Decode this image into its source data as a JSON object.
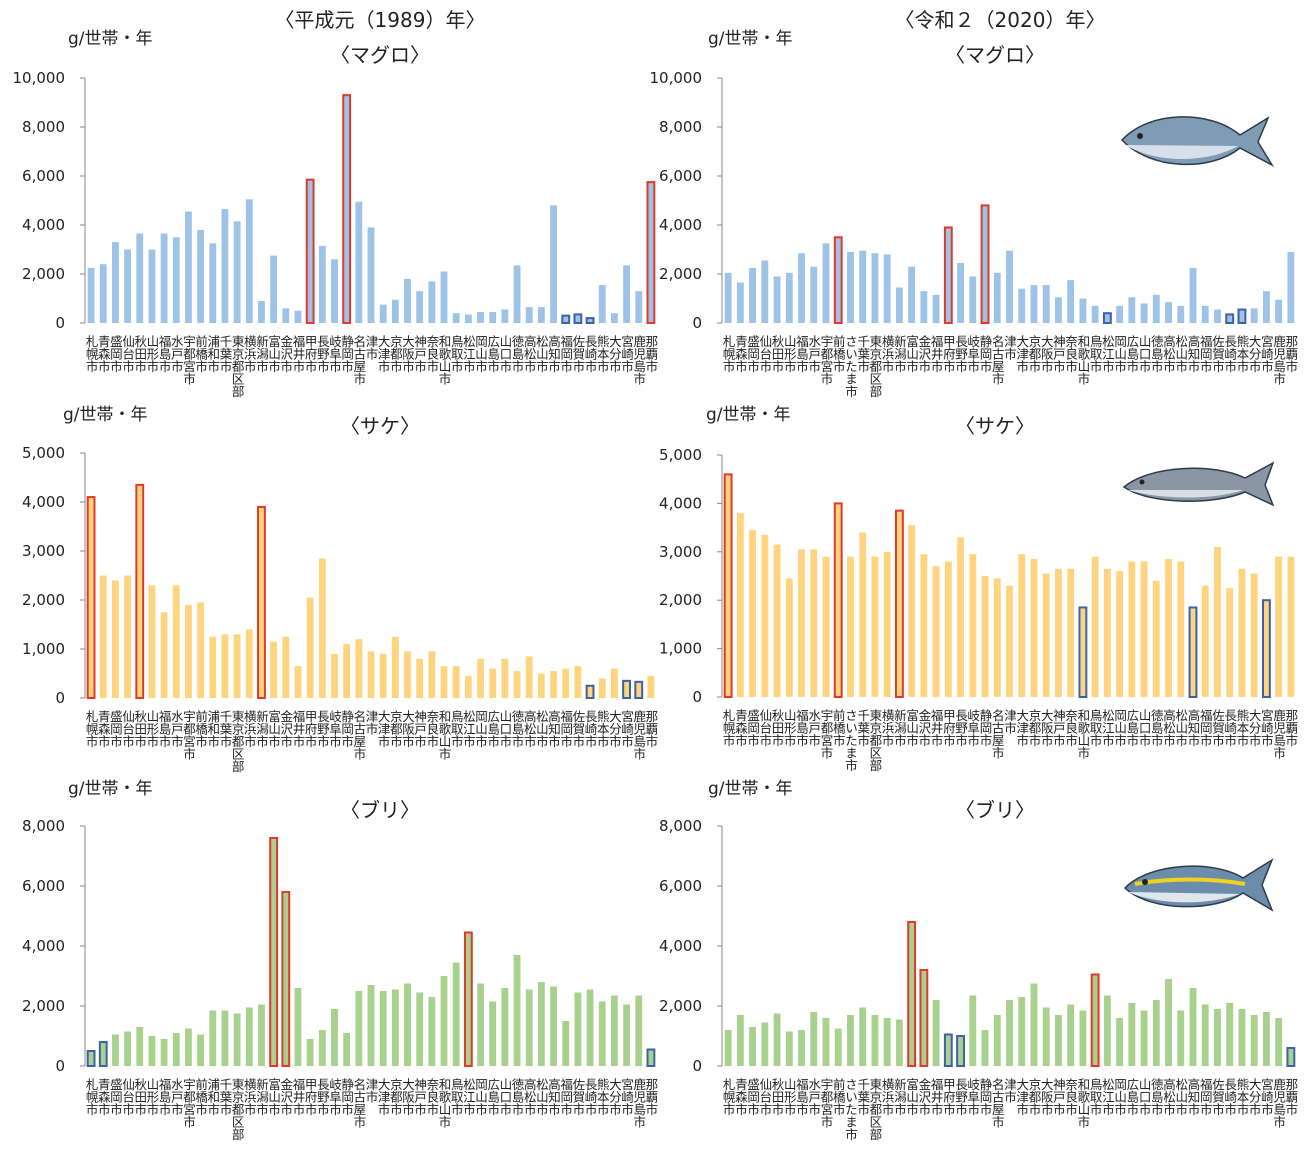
{
  "period_titles": [
    "〈平成元（1989）年〉",
    "〈令和２（2020）年〉"
  ],
  "chart_data": [
    {
      "type": "bar",
      "title": "〈マグロ〉",
      "y_label": "g/世帯・年",
      "categories": [
        "札幌市",
        "青森市",
        "盛岡市",
        "仙台市",
        "秋田市",
        "山形市",
        "福島市",
        "水戸市",
        "宇都宮市",
        "前橋市",
        "浦和市",
        "千葉市",
        "東京都区部",
        "横浜市",
        "新潟市",
        "富山市",
        "金沢市",
        "福井市",
        "甲府市",
        "長野市",
        "岐阜市",
        "静岡市",
        "名古屋市",
        "津市",
        "大津市",
        "京都市",
        "大阪市",
        "神戸市",
        "奈良市",
        "和歌山市",
        "鳥取市",
        "松江市",
        "岡山市",
        "広島市",
        "山口市",
        "徳島市",
        "高松市",
        "松山市",
        "高知市",
        "福岡市",
        "佐賀市",
        "長崎市",
        "熊本市",
        "大分市",
        "宮崎市",
        "鹿児島市",
        "那覇市"
      ],
      "values": [
        2250,
        2400,
        3300,
        3000,
        3650,
        3000,
        3650,
        3500,
        4550,
        3800,
        3250,
        4650,
        4150,
        5050,
        900,
        2750,
        600,
        500,
        5850,
        3150,
        2600,
        9300,
        4950,
        3900,
        750,
        950,
        1800,
        1300,
        1700,
        2100,
        400,
        350,
        450,
        450,
        550,
        2350,
        650,
        650,
        4800,
        300,
        350,
        200,
        1550,
        400,
        2350,
        1300,
        5750
      ],
      "color": "#9dc3e6",
      "max_outline_color": "#e0392b",
      "min_outline_color": "#3b62a5",
      "max_outlined": [
        18,
        21,
        46
      ],
      "min_outlined": [
        39,
        40,
        41
      ],
      "ylim": [
        0,
        10000
      ],
      "yticks": [
        0,
        {
          "value": 2000,
          "label": "2,000"
        },
        {
          "value": 4000,
          "label": "4,000"
        },
        {
          "value": 6000,
          "label": "6,000"
        },
        {
          "value": 8000,
          "label": "8,000"
        },
        {
          "value": 10000,
          "label": "10,000"
        }
      ]
    },
    {
      "type": "bar",
      "title": "〈マグロ〉",
      "y_label": "g/世帯・年",
      "categories": [
        "札幌市",
        "青森市",
        "盛岡市",
        "仙台市",
        "秋田市",
        "山形市",
        "福島市",
        "水戸市",
        "宇都宮市",
        "前橋市",
        "さいたま市",
        "千葉市",
        "東京都区部",
        "横浜市",
        "新潟市",
        "富山市",
        "金沢市",
        "福井市",
        "甲府市",
        "長野市",
        "岐阜市",
        "静岡市",
        "名古屋市",
        "津市",
        "大津市",
        "京都市",
        "大阪市",
        "神戸市",
        "奈良市",
        "和歌山市",
        "鳥取市",
        "松江市",
        "岡山市",
        "広島市",
        "山口市",
        "徳島市",
        "高松市",
        "松山市",
        "高知市",
        "福岡市",
        "佐賀市",
        "長崎市",
        "熊本市",
        "大分市",
        "宮崎市",
        "鹿児島市",
        "那覇市"
      ],
      "values": [
        2050,
        1650,
        2250,
        2550,
        1900,
        2050,
        2850,
        2300,
        3250,
        3500,
        2900,
        2950,
        2850,
        2800,
        1450,
        2300,
        1300,
        1150,
        3900,
        2450,
        1900,
        4800,
        2050,
        2950,
        1400,
        1550,
        1550,
        1050,
        1750,
        1000,
        700,
        400,
        700,
        1050,
        800,
        1150,
        850,
        700,
        2250,
        700,
        550,
        350,
        550,
        600,
        1300,
        950,
        2900
      ],
      "color": "#9dc3e6",
      "max_outline_color": "#e0392b",
      "min_outline_color": "#3b62a5",
      "max_outlined": [
        9,
        18,
        21
      ],
      "min_outlined": [
        31,
        41,
        42
      ],
      "ylim": [
        0,
        10000
      ],
      "yticks": [
        0,
        {
          "value": 2000,
          "label": "2,000"
        },
        {
          "value": 4000,
          "label": "4,000"
        },
        {
          "value": 6000,
          "label": "6,000"
        },
        {
          "value": 8000,
          "label": "8,000"
        },
        {
          "value": 10000,
          "label": "10,000"
        }
      ]
    },
    {
      "type": "bar",
      "title": "〈サケ〉",
      "y_label": "g/世帯・年",
      "categories": [
        "札幌市",
        "青森市",
        "盛岡市",
        "仙台市",
        "秋田市",
        "山形市",
        "福島市",
        "水戸市",
        "宇都宮市",
        "前橋市",
        "浦和市",
        "千葉市",
        "東京都区部",
        "横浜市",
        "新潟市",
        "富山市",
        "金沢市",
        "福井市",
        "甲府市",
        "長野市",
        "岐阜市",
        "静岡市",
        "名古屋市",
        "津市",
        "大津市",
        "京都市",
        "大阪市",
        "神戸市",
        "奈良市",
        "和歌山市",
        "鳥取市",
        "松江市",
        "岡山市",
        "広島市",
        "山口市",
        "徳島市",
        "高松市",
        "松山市",
        "高知市",
        "福岡市",
        "佐賀市",
        "長崎市",
        "熊本市",
        "大分市",
        "宮崎市",
        "鹿児島市",
        "那覇市"
      ],
      "values": [
        4100,
        2500,
        2400,
        2500,
        4350,
        2300,
        1750,
        2300,
        1900,
        1950,
        1250,
        1300,
        1300,
        1400,
        3900,
        1150,
        1250,
        650,
        2050,
        2850,
        900,
        1100,
        1200,
        950,
        900,
        1250,
        950,
        800,
        950,
        650,
        650,
        450,
        800,
        600,
        800,
        550,
        850,
        500,
        550,
        600,
        650,
        250,
        400,
        600,
        350,
        330,
        450
      ],
      "color": "#ffd47f",
      "max_outline_color": "#e0392b",
      "min_outline_color": "#3b62a5",
      "max_outlined": [
        0,
        4,
        14
      ],
      "min_outlined": [
        41,
        44,
        45
      ],
      "ylim": [
        0,
        5000
      ],
      "yticks": [
        0,
        {
          "value": 1000,
          "label": "1,000"
        },
        {
          "value": 2000,
          "label": "2,000"
        },
        {
          "value": 3000,
          "label": "3,000"
        },
        {
          "value": 4000,
          "label": "4,000"
        },
        {
          "value": 5000,
          "label": "5,000"
        }
      ]
    },
    {
      "type": "bar",
      "title": "〈サケ〉",
      "y_label": "g/世帯・年",
      "categories": [
        "札幌市",
        "青森市",
        "盛岡市",
        "仙台市",
        "秋田市",
        "山形市",
        "福島市",
        "水戸市",
        "宇都宮市",
        "前橋市",
        "さいたま市",
        "千葉市",
        "東京都区部",
        "横浜市",
        "新潟市",
        "富山市",
        "金沢市",
        "福井市",
        "甲府市",
        "長野市",
        "岐阜市",
        "静岡市",
        "名古屋市",
        "津市",
        "大津市",
        "京都市",
        "大阪市",
        "神戸市",
        "奈良市",
        "和歌山市",
        "鳥取市",
        "松江市",
        "岡山市",
        "広島市",
        "山口市",
        "徳島市",
        "高松市",
        "松山市",
        "高知市",
        "福岡市",
        "佐賀市",
        "長崎市",
        "熊本市",
        "大分市",
        "宮崎市",
        "鹿児島市",
        "那覇市"
      ],
      "values": [
        4600,
        3800,
        3450,
        3350,
        3150,
        2450,
        3050,
        3050,
        2900,
        4000,
        2900,
        3400,
        2900,
        3000,
        3850,
        3550,
        2950,
        2700,
        2800,
        3300,
        2950,
        2500,
        2450,
        2300,
        2950,
        2850,
        2550,
        2650,
        2650,
        1850,
        2900,
        2650,
        2600,
        2800,
        2800,
        2400,
        2850,
        2800,
        1850,
        2300,
        3100,
        2250,
        2650,
        2550,
        2000,
        2900,
        2900
      ],
      "color": "#ffd47f",
      "max_outline_color": "#e0392b",
      "min_outline_color": "#3b62a5",
      "max_outlined": [
        0,
        9,
        14
      ],
      "min_outlined": [
        29,
        38,
        44
      ],
      "ylim": [
        0,
        5000
      ],
      "yticks": [
        0,
        {
          "value": 1000,
          "label": "1,000"
        },
        {
          "value": 2000,
          "label": "2,000"
        },
        {
          "value": 3000,
          "label": "3,000"
        },
        {
          "value": 4000,
          "label": "4,000"
        },
        {
          "value": 5000,
          "label": "5,000"
        }
      ]
    },
    {
      "type": "bar",
      "title": "〈ブリ〉",
      "y_label": "g/世帯・年",
      "categories": [
        "札幌市",
        "青森市",
        "盛岡市",
        "仙台市",
        "秋田市",
        "山形市",
        "福島市",
        "水戸市",
        "宇都宮市",
        "前橋市",
        "浦和市",
        "千葉市",
        "東京都区部",
        "横浜市",
        "新潟市",
        "富山市",
        "金沢市",
        "福井市",
        "甲府市",
        "長野市",
        "岐阜市",
        "静岡市",
        "名古屋市",
        "津市",
        "大津市",
        "京都市",
        "大阪市",
        "神戸市",
        "奈良市",
        "和歌山市",
        "鳥取市",
        "松江市",
        "岡山市",
        "広島市",
        "山口市",
        "徳島市",
        "高松市",
        "松山市",
        "高知市",
        "福岡市",
        "佐賀市",
        "長崎市",
        "熊本市",
        "大分市",
        "宮崎市",
        "鹿児島市",
        "那覇市"
      ],
      "values": [
        500,
        800,
        1050,
        1150,
        1300,
        1000,
        900,
        1100,
        1250,
        1050,
        1850,
        1850,
        1750,
        1950,
        2050,
        7600,
        5800,
        2600,
        900,
        1200,
        1900,
        1100,
        2500,
        2700,
        2500,
        2550,
        2750,
        2450,
        2300,
        3000,
        3450,
        4450,
        2750,
        2150,
        2600,
        3700,
        2550,
        2800,
        2650,
        1500,
        2450,
        2550,
        2150,
        2350,
        2050,
        2350,
        550
      ],
      "color": "#a9d18e",
      "max_outline_color": "#e0392b",
      "min_outline_color": "#3b62a5",
      "max_outlined": [
        15,
        16,
        31
      ],
      "min_outlined": [
        0,
        1,
        46
      ],
      "ylim": [
        0,
        8000
      ],
      "yticks": [
        0,
        {
          "value": 2000,
          "label": "2,000"
        },
        {
          "value": 4000,
          "label": "4,000"
        },
        {
          "value": 6000,
          "label": "6,000"
        },
        {
          "value": 8000,
          "label": "8,000"
        }
      ]
    },
    {
      "type": "bar",
      "title": "〈ブリ〉",
      "y_label": "g/世帯・年",
      "categories": [
        "札幌市",
        "青森市",
        "盛岡市",
        "仙台市",
        "秋田市",
        "山形市",
        "福島市",
        "水戸市",
        "宇都宮市",
        "前橋市",
        "さいたま市",
        "千葉市",
        "東京都区部",
        "横浜市",
        "新潟市",
        "富山市",
        "金沢市",
        "福井市",
        "甲府市",
        "長野市",
        "岐阜市",
        "静岡市",
        "名古屋市",
        "津市",
        "大津市",
        "京都市",
        "大阪市",
        "神戸市",
        "奈良市",
        "和歌山市",
        "鳥取市",
        "松江市",
        "岡山市",
        "広島市",
        "山口市",
        "徳島市",
        "高松市",
        "松山市",
        "高知市",
        "福岡市",
        "佐賀市",
        "長崎市",
        "熊本市",
        "大分市",
        "宮崎市",
        "鹿児島市",
        "那覇市"
      ],
      "values": [
        1200,
        1700,
        1300,
        1450,
        1750,
        1150,
        1200,
        1800,
        1600,
        1250,
        1700,
        1950,
        1700,
        1600,
        1550,
        4800,
        3200,
        2200,
        1050,
        1000,
        2350,
        1200,
        1700,
        2200,
        2300,
        2750,
        1950,
        1700,
        2050,
        1850,
        3050,
        2350,
        1600,
        2100,
        1850,
        2200,
        2900,
        1850,
        2600,
        2050,
        1900,
        2100,
        1900,
        1700,
        1800,
        1600,
        600
      ],
      "color": "#a9d18e",
      "max_outline_color": "#e0392b",
      "min_outline_color": "#3b62a5",
      "max_outlined": [
        15,
        16,
        30
      ],
      "min_outlined": [
        18,
        19,
        46
      ],
      "ylim": [
        0,
        8000
      ],
      "yticks": [
        0,
        {
          "value": 2000,
          "label": "2,000"
        },
        {
          "value": 4000,
          "label": "4,000"
        },
        {
          "value": 6000,
          "label": "6,000"
        },
        {
          "value": 8000,
          "label": "8,000"
        }
      ]
    }
  ]
}
